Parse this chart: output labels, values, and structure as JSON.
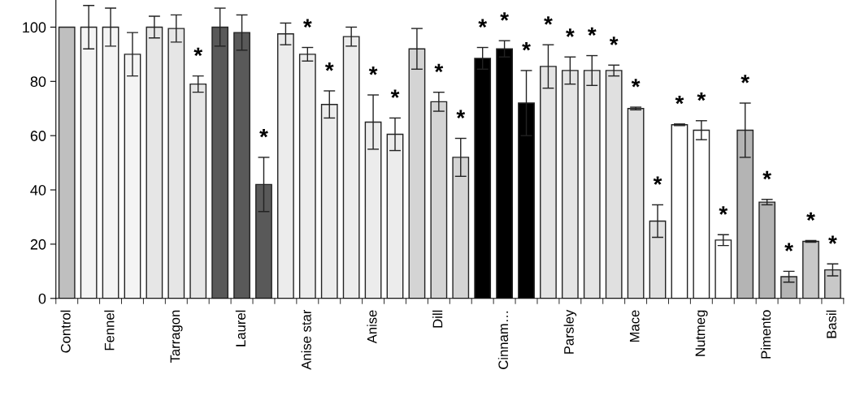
{
  "chart_data": {
    "type": "bar",
    "categories": [
      "Control",
      null,
      "Fennel",
      null,
      null,
      "Tarragon",
      null,
      null,
      "Laurel",
      null,
      null,
      "Anise star",
      null,
      null,
      "Anise",
      null,
      null,
      "Dill",
      null,
      null,
      "Cinnam…",
      null,
      null,
      "Parsley",
      null,
      null,
      "Mace",
      null,
      null,
      "Nutmeg",
      null,
      null,
      "Pimento",
      null,
      null,
      "Basil"
    ],
    "values": [
      100,
      100,
      100,
      90,
      100,
      99.5,
      79,
      100,
      98,
      42,
      97.5,
      90,
      71.5,
      96.5,
      65,
      60.5,
      92,
      72.5,
      52,
      88.5,
      92,
      72,
      85.5,
      84,
      84,
      84,
      70,
      28.5,
      64,
      62,
      21.5,
      62,
      35.5,
      8,
      21,
      10.5
    ],
    "errors": [
      null,
      8,
      7,
      8,
      4,
      5,
      3,
      7,
      6.5,
      10,
      4,
      2.5,
      5,
      3.5,
      10,
      6,
      7.5,
      3.5,
      7,
      4,
      3,
      12,
      8,
      5,
      5.5,
      2,
      0.5,
      6,
      0.3,
      3.5,
      2,
      10,
      1,
      2,
      0.3,
      2.2
    ],
    "value_labels": [
      null,
      null,
      null,
      null,
      null,
      null,
      "*",
      null,
      null,
      "*",
      null,
      "*",
      "*",
      null,
      "*",
      "*",
      null,
      "*",
      "*",
      "*",
      "*",
      "*",
      "*",
      "*",
      "*",
      "*",
      "*",
      "*",
      "*",
      "*",
      "*",
      "*",
      "*",
      "*",
      "*",
      "*"
    ],
    "colors": [
      "#bfbfbf",
      "#f4f4f4",
      "#f4f4f4",
      "#f4f4f4",
      "#e6e6e6",
      "#e6e6e6",
      "#e6e6e6",
      "#595959",
      "#595959",
      "#595959",
      "#ececec",
      "#ececec",
      "#ececec",
      "#ececec",
      "#ececec",
      "#ececec",
      "#d4d4d4",
      "#d4d4d4",
      "#d4d4d4",
      "#000000",
      "#000000",
      "#000000",
      "#e4e4e4",
      "#e4e4e4",
      "#e4e4e4",
      "#e0e0e0",
      "#e0e0e0",
      "#e0e0e0",
      "#ffffff",
      "#ffffff",
      "#ffffff",
      "#b4b4b4",
      "#b4b4b4",
      "#b4b4b4",
      "#c8c8c8",
      "#c8c8c8"
    ],
    "ylim": [
      0,
      110
    ],
    "yticks": [
      0,
      20,
      40,
      60,
      80,
      100
    ],
    "grid": false,
    "legend": false
  }
}
